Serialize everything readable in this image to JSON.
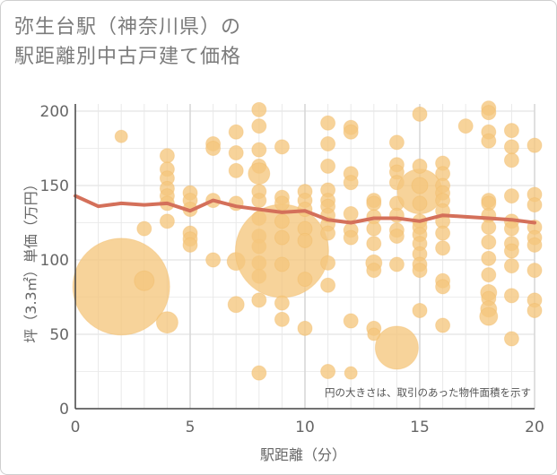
{
  "title_line1": "弥生台駅（神奈川県）の",
  "title_line2": "駅距離別中古戸建て価格",
  "chart_data": {
    "type": "scatter",
    "xlabel": "駅距離（分）",
    "ylabel": "坪（3.3㎡）単価（万円）",
    "note": "円の大きさは、取引のあった物件面積を示す",
    "xlim": [
      0,
      20
    ],
    "ylim": [
      0,
      210
    ],
    "xticks": [
      "0",
      "5",
      "10",
      "15",
      "20"
    ],
    "yticks": [
      "0",
      "50",
      "100",
      "150",
      "200"
    ],
    "xtick_values": [
      0,
      5,
      10,
      15,
      20
    ],
    "ytick_values": [
      0,
      50,
      100,
      150,
      200
    ],
    "bubble_color": "#f5c77e",
    "line_color": "#d4705a",
    "grid": true,
    "points": [
      {
        "x": 2,
        "y": 82,
        "s": 54
      },
      {
        "x": 2,
        "y": 183,
        "s": 7
      },
      {
        "x": 3,
        "y": 86,
        "s": 11
      },
      {
        "x": 3,
        "y": 121,
        "s": 8
      },
      {
        "x": 4,
        "y": 58,
        "s": 12
      },
      {
        "x": 4,
        "y": 170,
        "s": 8
      },
      {
        "x": 4,
        "y": 161,
        "s": 8
      },
      {
        "x": 4,
        "y": 155,
        "s": 8
      },
      {
        "x": 4,
        "y": 148,
        "s": 8
      },
      {
        "x": 4,
        "y": 143,
        "s": 8
      },
      {
        "x": 4,
        "y": 138,
        "s": 8
      },
      {
        "x": 4,
        "y": 126,
        "s": 8
      },
      {
        "x": 5,
        "y": 145,
        "s": 8
      },
      {
        "x": 5,
        "y": 140,
        "s": 8
      },
      {
        "x": 5,
        "y": 134,
        "s": 8
      },
      {
        "x": 5,
        "y": 118,
        "s": 8
      },
      {
        "x": 5,
        "y": 114,
        "s": 8
      },
      {
        "x": 5,
        "y": 110,
        "s": 8
      },
      {
        "x": 6,
        "y": 178,
        "s": 8
      },
      {
        "x": 6,
        "y": 175,
        "s": 8
      },
      {
        "x": 6,
        "y": 140,
        "s": 8
      },
      {
        "x": 6,
        "y": 100,
        "s": 8
      },
      {
        "x": 7,
        "y": 186,
        "s": 8
      },
      {
        "x": 7,
        "y": 172,
        "s": 8
      },
      {
        "x": 7,
        "y": 160,
        "s": 8
      },
      {
        "x": 7,
        "y": 138,
        "s": 8
      },
      {
        "x": 7,
        "y": 99,
        "s": 10
      },
      {
        "x": 7,
        "y": 70,
        "s": 9
      },
      {
        "x": 8,
        "y": 201,
        "s": 8
      },
      {
        "x": 8,
        "y": 190,
        "s": 8
      },
      {
        "x": 8,
        "y": 174,
        "s": 8
      },
      {
        "x": 8,
        "y": 163,
        "s": 8
      },
      {
        "x": 8,
        "y": 158,
        "s": 12
      },
      {
        "x": 8,
        "y": 146,
        "s": 8
      },
      {
        "x": 8,
        "y": 140,
        "s": 8
      },
      {
        "x": 8,
        "y": 128,
        "s": 8
      },
      {
        "x": 8,
        "y": 116,
        "s": 8
      },
      {
        "x": 8,
        "y": 109,
        "s": 8
      },
      {
        "x": 8,
        "y": 98,
        "s": 8
      },
      {
        "x": 8,
        "y": 89,
        "s": 8
      },
      {
        "x": 8,
        "y": 73,
        "s": 8
      },
      {
        "x": 8,
        "y": 24,
        "s": 8
      },
      {
        "x": 9,
        "y": 106,
        "s": 52
      },
      {
        "x": 9,
        "y": 176,
        "s": 8
      },
      {
        "x": 9,
        "y": 142,
        "s": 8
      },
      {
        "x": 9,
        "y": 138,
        "s": 8
      },
      {
        "x": 9,
        "y": 126,
        "s": 8
      },
      {
        "x": 9,
        "y": 115,
        "s": 8
      },
      {
        "x": 9,
        "y": 97,
        "s": 8
      },
      {
        "x": 9,
        "y": 71,
        "s": 8
      },
      {
        "x": 9,
        "y": 60,
        "s": 8
      },
      {
        "x": 10,
        "y": 146,
        "s": 8
      },
      {
        "x": 10,
        "y": 140,
        "s": 8
      },
      {
        "x": 10,
        "y": 134,
        "s": 8
      },
      {
        "x": 10,
        "y": 121,
        "s": 8
      },
      {
        "x": 10,
        "y": 113,
        "s": 8
      },
      {
        "x": 10,
        "y": 87,
        "s": 8
      },
      {
        "x": 10,
        "y": 54,
        "s": 8
      },
      {
        "x": 11,
        "y": 192,
        "s": 8
      },
      {
        "x": 11,
        "y": 178,
        "s": 8
      },
      {
        "x": 11,
        "y": 163,
        "s": 8
      },
      {
        "x": 11,
        "y": 147,
        "s": 8
      },
      {
        "x": 11,
        "y": 140,
        "s": 8
      },
      {
        "x": 11,
        "y": 136,
        "s": 8
      },
      {
        "x": 11,
        "y": 130,
        "s": 8
      },
      {
        "x": 11,
        "y": 124,
        "s": 8
      },
      {
        "x": 11,
        "y": 118,
        "s": 8
      },
      {
        "x": 11,
        "y": 98,
        "s": 8
      },
      {
        "x": 11,
        "y": 83,
        "s": 8
      },
      {
        "x": 11,
        "y": 25,
        "s": 8
      },
      {
        "x": 12,
        "y": 189,
        "s": 8
      },
      {
        "x": 12,
        "y": 186,
        "s": 8
      },
      {
        "x": 12,
        "y": 158,
        "s": 8
      },
      {
        "x": 12,
        "y": 152,
        "s": 8
      },
      {
        "x": 12,
        "y": 131,
        "s": 8
      },
      {
        "x": 12,
        "y": 120,
        "s": 8
      },
      {
        "x": 12,
        "y": 115,
        "s": 8
      },
      {
        "x": 12,
        "y": 59,
        "s": 8
      },
      {
        "x": 12,
        "y": 24,
        "s": 7
      },
      {
        "x": 13,
        "y": 140,
        "s": 8
      },
      {
        "x": 13,
        "y": 138,
        "s": 8
      },
      {
        "x": 13,
        "y": 129,
        "s": 8
      },
      {
        "x": 13,
        "y": 121,
        "s": 8
      },
      {
        "x": 13,
        "y": 111,
        "s": 8
      },
      {
        "x": 13,
        "y": 98,
        "s": 9
      },
      {
        "x": 13,
        "y": 93,
        "s": 8
      },
      {
        "x": 13,
        "y": 54,
        "s": 8
      },
      {
        "x": 13,
        "y": 50,
        "s": 7
      },
      {
        "x": 14,
        "y": 179,
        "s": 8
      },
      {
        "x": 14,
        "y": 164,
        "s": 8
      },
      {
        "x": 14,
        "y": 159,
        "s": 8
      },
      {
        "x": 14,
        "y": 152,
        "s": 8
      },
      {
        "x": 14,
        "y": 138,
        "s": 8
      },
      {
        "x": 14,
        "y": 130,
        "s": 8
      },
      {
        "x": 14,
        "y": 120,
        "s": 8
      },
      {
        "x": 14,
        "y": 116,
        "s": 8
      },
      {
        "x": 14,
        "y": 97,
        "s": 8
      },
      {
        "x": 14,
        "y": 41,
        "s": 24
      },
      {
        "x": 15,
        "y": 146,
        "s": 25
      },
      {
        "x": 15,
        "y": 198,
        "s": 8
      },
      {
        "x": 15,
        "y": 163,
        "s": 8
      },
      {
        "x": 15,
        "y": 150,
        "s": 9
      },
      {
        "x": 15,
        "y": 138,
        "s": 8
      },
      {
        "x": 15,
        "y": 126,
        "s": 8
      },
      {
        "x": 15,
        "y": 122,
        "s": 8
      },
      {
        "x": 15,
        "y": 117,
        "s": 8
      },
      {
        "x": 15,
        "y": 111,
        "s": 8
      },
      {
        "x": 15,
        "y": 104,
        "s": 8
      },
      {
        "x": 15,
        "y": 97,
        "s": 8
      },
      {
        "x": 15,
        "y": 93,
        "s": 8
      },
      {
        "x": 15,
        "y": 66,
        "s": 8
      },
      {
        "x": 16,
        "y": 165,
        "s": 8
      },
      {
        "x": 16,
        "y": 158,
        "s": 8
      },
      {
        "x": 16,
        "y": 150,
        "s": 8
      },
      {
        "x": 16,
        "y": 145,
        "s": 8
      },
      {
        "x": 16,
        "y": 140,
        "s": 8
      },
      {
        "x": 16,
        "y": 133,
        "s": 8
      },
      {
        "x": 16,
        "y": 126,
        "s": 8
      },
      {
        "x": 16,
        "y": 118,
        "s": 8
      },
      {
        "x": 16,
        "y": 108,
        "s": 8
      },
      {
        "x": 16,
        "y": 86,
        "s": 8
      },
      {
        "x": 16,
        "y": 82,
        "s": 8
      },
      {
        "x": 16,
        "y": 56,
        "s": 8
      },
      {
        "x": 17,
        "y": 190,
        "s": 8
      },
      {
        "x": 18,
        "y": 202,
        "s": 8
      },
      {
        "x": 18,
        "y": 199,
        "s": 8
      },
      {
        "x": 18,
        "y": 186,
        "s": 8
      },
      {
        "x": 18,
        "y": 180,
        "s": 8
      },
      {
        "x": 18,
        "y": 140,
        "s": 8
      },
      {
        "x": 18,
        "y": 138,
        "s": 8
      },
      {
        "x": 18,
        "y": 130,
        "s": 8
      },
      {
        "x": 18,
        "y": 122,
        "s": 8
      },
      {
        "x": 18,
        "y": 112,
        "s": 8
      },
      {
        "x": 18,
        "y": 101,
        "s": 8
      },
      {
        "x": 18,
        "y": 90,
        "s": 8
      },
      {
        "x": 18,
        "y": 78,
        "s": 9
      },
      {
        "x": 18,
        "y": 74,
        "s": 8
      },
      {
        "x": 18,
        "y": 67,
        "s": 9
      },
      {
        "x": 18,
        "y": 62,
        "s": 10
      },
      {
        "x": 19,
        "y": 187,
        "s": 8
      },
      {
        "x": 19,
        "y": 176,
        "s": 8
      },
      {
        "x": 19,
        "y": 167,
        "s": 8
      },
      {
        "x": 19,
        "y": 143,
        "s": 8
      },
      {
        "x": 19,
        "y": 126,
        "s": 8
      },
      {
        "x": 19,
        "y": 121,
        "s": 8
      },
      {
        "x": 19,
        "y": 111,
        "s": 8
      },
      {
        "x": 19,
        "y": 106,
        "s": 8
      },
      {
        "x": 19,
        "y": 96,
        "s": 8
      },
      {
        "x": 19,
        "y": 76,
        "s": 8
      },
      {
        "x": 19,
        "y": 47,
        "s": 8
      },
      {
        "x": 20,
        "y": 177,
        "s": 8
      },
      {
        "x": 20,
        "y": 144,
        "s": 8
      },
      {
        "x": 20,
        "y": 137,
        "s": 8
      },
      {
        "x": 20,
        "y": 122,
        "s": 8
      },
      {
        "x": 20,
        "y": 115,
        "s": 8
      },
      {
        "x": 20,
        "y": 110,
        "s": 8
      },
      {
        "x": 20,
        "y": 93,
        "s": 8
      },
      {
        "x": 20,
        "y": 73,
        "s": 8
      },
      {
        "x": 20,
        "y": 66,
        "s": 8
      }
    ],
    "trend": {
      "x": [
        0,
        1,
        2,
        3,
        4,
        5,
        6,
        7,
        8,
        9,
        10,
        11,
        12,
        13,
        14,
        15,
        16,
        17,
        18,
        19,
        20
      ],
      "y": [
        143,
        136,
        138,
        137,
        138,
        133,
        140,
        136,
        134,
        132,
        133,
        127,
        125,
        128,
        128,
        126,
        130,
        129,
        128,
        127,
        125
      ]
    }
  }
}
